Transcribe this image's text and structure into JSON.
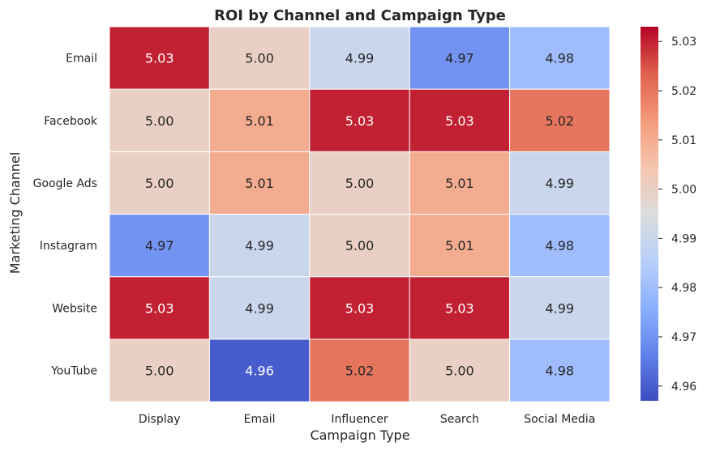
{
  "chart_data": {
    "type": "heatmap",
    "title": "ROI by Channel and Campaign Type",
    "xlabel": "Campaign Type",
    "ylabel": "Marketing Channel",
    "x_categories": [
      "Display",
      "Email",
      "Influencer",
      "Search",
      "Social Media"
    ],
    "y_categories": [
      "Email",
      "Facebook",
      "Google Ads",
      "Instagram",
      "Website",
      "YouTube"
    ],
    "values": [
      [
        5.03,
        5.0,
        4.99,
        4.97,
        4.98
      ],
      [
        5.0,
        5.01,
        5.03,
        5.03,
        5.02
      ],
      [
        5.0,
        5.01,
        5.0,
        5.01,
        4.99
      ],
      [
        4.97,
        4.99,
        5.0,
        5.01,
        4.98
      ],
      [
        5.03,
        4.99,
        5.03,
        5.03,
        4.99
      ],
      [
        5.0,
        4.96,
        5.02,
        5.0,
        4.98
      ]
    ],
    "value_format": "2 decimals",
    "colormap": "coolwarm",
    "color_range": [
      4.957,
      5.033
    ],
    "colorbar_ticks": [
      "5.03",
      "5.02",
      "5.01",
      "5.00",
      "4.99",
      "4.98",
      "4.97",
      "4.96"
    ],
    "colorbar_tick_values": [
      5.03,
      5.02,
      5.01,
      5.0,
      4.99,
      4.98,
      4.97,
      4.96
    ]
  }
}
